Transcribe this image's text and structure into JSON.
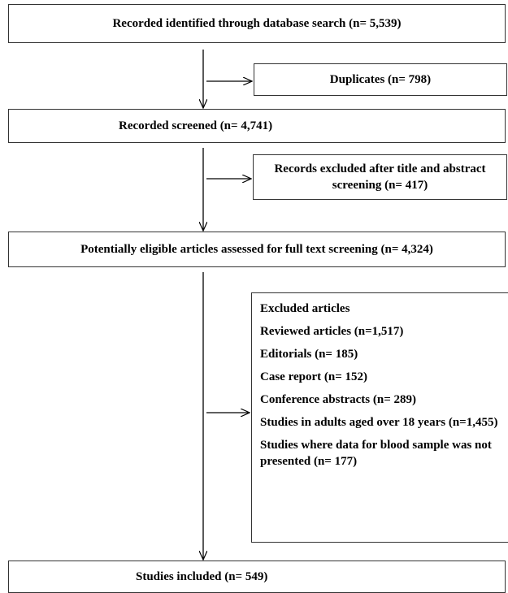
{
  "boxes": {
    "search": "Recorded identified through database search (n= 5,539)",
    "duplicates": "Duplicates (n= 798)",
    "screened": "Recorded screened (n= 4,741)",
    "excluded_title": "Records excluded after title and abstract screening (n= 417)",
    "eligible": "Potentially eligible articles assessed for full text screening (n= 4,324)",
    "excluded_articles": {
      "heading": "Excluded articles",
      "items": [
        "Reviewed articles (n=1,517)",
        "Editorials (n= 185)",
        "Case report (n= 152)",
        "Conference abstracts (n= 289)",
        "Studies in adults aged over 18 years (n=1,455)",
        "Studies where data for blood sample was not presented (n= 177)"
      ]
    },
    "included": "Studies included (n= 549)"
  },
  "colors": {
    "line": "#000000",
    "border": "#333333",
    "background": "#ffffff"
  }
}
